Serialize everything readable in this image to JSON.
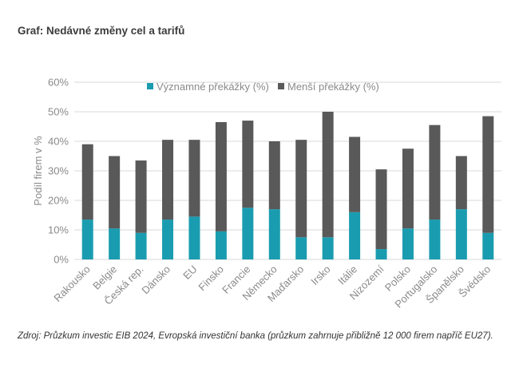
{
  "header": {
    "title": "Graf: Nedávné změny cel a tarifů"
  },
  "footer": {
    "source": "Zdroj: Průzkum investic EIB 2024, Evropská investiční banka (průzkum zahrnuje přibližně 12 000 firem napříč EU27)."
  },
  "colors": {
    "major": "#1a9cb0",
    "minor": "#595959",
    "grid": "#d9d9d9"
  },
  "chart_data": {
    "type": "bar",
    "stacked": true,
    "ylabel": "Podíl firem v %",
    "ylim": [
      0,
      60
    ],
    "yticks": [
      "0%",
      "10%",
      "20%",
      "30%",
      "40%",
      "50%",
      "60%"
    ],
    "legend_position": "top",
    "categories": [
      "Rakousko",
      "Belgie",
      "Česká rep.",
      "Dánsko",
      "EU",
      "Finsko",
      "Francie",
      "Německo",
      "Maďarsko",
      "Irsko",
      "Itálie",
      "Nizozemí",
      "Polsko",
      "Portugalsko",
      "Španělsko",
      "Švédsko"
    ],
    "series": [
      {
        "name": "Významné překážky (%)",
        "values": [
          13.5,
          10.5,
          9,
          13.5,
          14.5,
          9.5,
          17.5,
          17,
          7.5,
          7.5,
          16,
          3.5,
          10.5,
          13.5,
          17,
          9
        ]
      },
      {
        "name": "Menší překážky (%)",
        "values": [
          25.5,
          24.5,
          24.5,
          27,
          26,
          37,
          29.5,
          23,
          33,
          42.5,
          25.5,
          27,
          27,
          32,
          18,
          39.5
        ]
      }
    ]
  }
}
